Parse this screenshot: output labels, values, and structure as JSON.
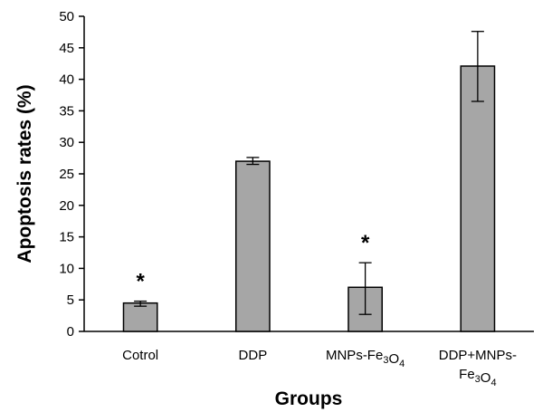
{
  "chart_data": {
    "type": "bar",
    "xlabel": "Groups",
    "ylabel": "Apoptosis rates (%)",
    "ylim": [
      0,
      50
    ],
    "yticks": [
      0,
      5,
      10,
      15,
      20,
      25,
      30,
      35,
      40,
      45,
      50
    ],
    "grid": false,
    "bar_color": "#a6a6a6",
    "categories": [
      {
        "label_lines": [
          "Cotrol"
        ],
        "value": 4.5,
        "err_low": 4.0,
        "err_high": 4.8,
        "significance": "*"
      },
      {
        "label_lines": [
          "DDP"
        ],
        "value": 27.0,
        "err_low": 26.5,
        "err_high": 27.6,
        "significance": ""
      },
      {
        "label_lines": [
          "MNPs-Fe3O4"
        ],
        "value": 7.0,
        "err_low": 2.7,
        "err_high": 10.9,
        "significance": "*"
      },
      {
        "label_lines": [
          "DDP+MNPs-",
          "Fe3O4"
        ],
        "value": 42.1,
        "err_low": 36.5,
        "err_high": 47.6,
        "significance": ""
      }
    ]
  }
}
